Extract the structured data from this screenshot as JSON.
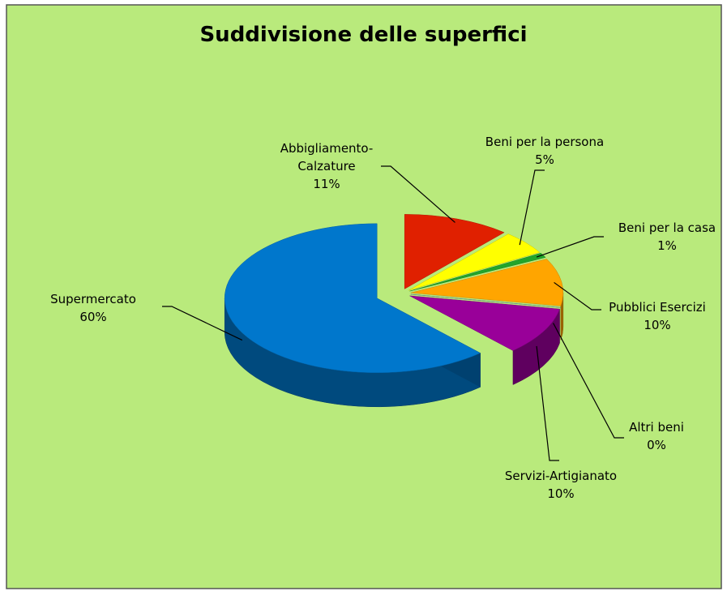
{
  "chart_data": {
    "type": "pie",
    "title": "Suddivisione delle superfici",
    "categories": [
      "Abbigliamento-Calzature",
      "Beni per la persona",
      "Beni per la casa",
      "Pubblici Esercizi",
      "Altri beni",
      "Servizi-Artigianato",
      "Supermercato"
    ],
    "values": [
      11,
      5,
      1,
      10,
      0,
      10,
      60
    ],
    "value_labels": [
      "11%",
      "5%",
      "1%",
      "10%",
      "0%",
      "10%",
      "60%"
    ],
    "colors": [
      "#e02000",
      "#ffff00",
      "#22a52a",
      "#ffa500",
      "#6f9aa8",
      "#990099",
      "#0077cc"
    ]
  }
}
